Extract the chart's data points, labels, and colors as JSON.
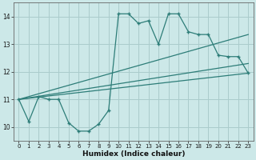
{
  "background_color": "#cce8e8",
  "grid_color": "#aacccc",
  "line_color": "#2d7d78",
  "xlabel": "Humidex (Indice chaleur)",
  "xlim": [
    -0.5,
    23.5
  ],
  "ylim": [
    9.5,
    14.5
  ],
  "yticks": [
    10,
    11,
    12,
    13,
    14
  ],
  "xticks": [
    0,
    1,
    2,
    3,
    4,
    5,
    6,
    7,
    8,
    9,
    10,
    11,
    12,
    13,
    14,
    15,
    16,
    17,
    18,
    19,
    20,
    21,
    22,
    23
  ],
  "line1_x": [
    0,
    1,
    2,
    3,
    4,
    5,
    6,
    7,
    8,
    9,
    10,
    11,
    12,
    13,
    14,
    15,
    16,
    17,
    18,
    19,
    20,
    21,
    22,
    23
  ],
  "line1_y": [
    11.0,
    10.2,
    11.1,
    11.0,
    11.0,
    10.15,
    9.85,
    9.85,
    10.1,
    10.6,
    14.1,
    14.1,
    13.75,
    13.85,
    13.0,
    14.1,
    14.1,
    13.45,
    13.35,
    13.35,
    12.6,
    12.55,
    12.55,
    11.95
  ],
  "line2_x": [
    0,
    23
  ],
  "line2_y": [
    11.0,
    11.95
  ],
  "line3_x": [
    0,
    23
  ],
  "line3_y": [
    11.0,
    12.3
  ],
  "line4_x": [
    0,
    23
  ],
  "line4_y": [
    11.0,
    13.35
  ]
}
